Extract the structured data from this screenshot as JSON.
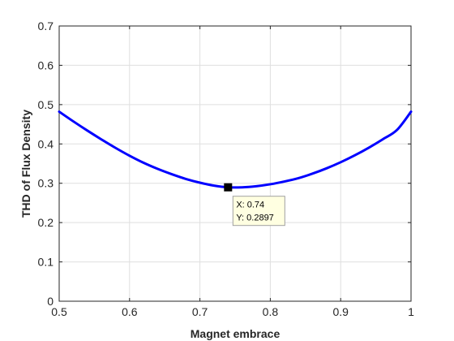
{
  "chart_data": {
    "type": "line",
    "title": "",
    "xlabel": "Magnet embrace",
    "ylabel": "THD of Flux Density",
    "xlim": [
      0.5,
      1.0
    ],
    "ylim": [
      0,
      0.7
    ],
    "xticks": [
      0.5,
      0.6,
      0.7,
      0.8,
      0.9,
      1.0
    ],
    "xtick_labels": [
      "0.5",
      "0.6",
      "0.7",
      "0.8",
      "0.9",
      "1"
    ],
    "yticks": [
      0,
      0.1,
      0.2,
      0.3,
      0.4,
      0.5,
      0.6,
      0.7
    ],
    "ytick_labels": [
      "0",
      "0.1",
      "0.2",
      "0.3",
      "0.4",
      "0.5",
      "0.6",
      "0.7"
    ],
    "grid": true,
    "series": [
      {
        "name": "THD",
        "color": "#0000ff",
        "x": [
          0.5,
          0.52,
          0.54,
          0.56,
          0.58,
          0.6,
          0.62,
          0.64,
          0.66,
          0.68,
          0.7,
          0.72,
          0.74,
          0.76,
          0.78,
          0.8,
          0.82,
          0.84,
          0.86,
          0.88,
          0.9,
          0.92,
          0.94,
          0.96,
          0.98,
          1.0
        ],
        "y": [
          0.482,
          0.4575,
          0.434,
          0.4115,
          0.39,
          0.37,
          0.352,
          0.3365,
          0.323,
          0.311,
          0.3015,
          0.294,
          0.2897,
          0.2897,
          0.2925,
          0.2975,
          0.3045,
          0.313,
          0.3245,
          0.338,
          0.3535,
          0.371,
          0.3905,
          0.412,
          0.4355,
          0.482
        ]
      }
    ],
    "datatip": {
      "x": 0.74,
      "y": 0.2897,
      "x_text": "X: 0.74",
      "y_text": "Y: 0.2897",
      "marker_color": "#000000",
      "box_color": "#ffffe1"
    }
  }
}
